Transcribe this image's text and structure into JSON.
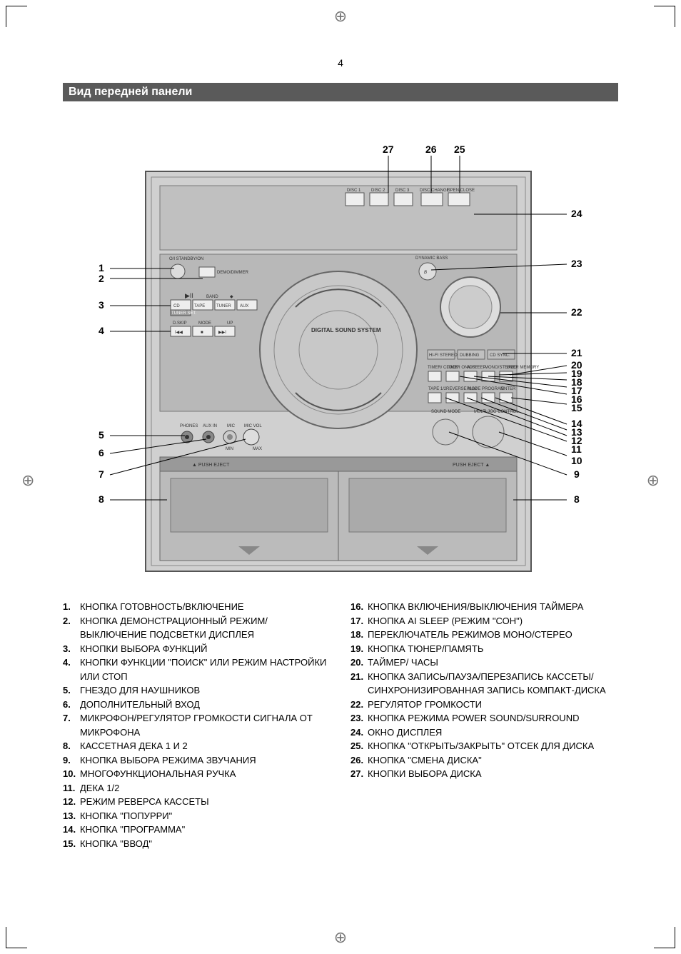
{
  "page_number": "4",
  "section_title": "Вид передней панели",
  "callouts_top": [
    "27",
    "26",
    "25"
  ],
  "callouts_left": [
    "1",
    "2",
    "3",
    "4",
    "5",
    "6",
    "7",
    "8"
  ],
  "callouts_right": [
    "24",
    "23",
    "22",
    "21",
    "20",
    "19",
    "18",
    "17",
    "16",
    "15",
    "14",
    "13",
    "12",
    "11",
    "10",
    "9",
    "8"
  ],
  "diagram_labels": {
    "standby": "О/I STANDBY/ON",
    "demo": "DEMO/DIMMER",
    "dynamic": "DYNAMIC BASS",
    "dss": "DIGITAL SOUND SYSTEM",
    "disc1": "DISC 1",
    "disc2": "DISC 2",
    "disc3": "DISC 3",
    "discchange": "DISC CHANGE",
    "openclose": "OPEN/CLOSE",
    "band": "BAND",
    "cd": "CD",
    "tape": "TAPE",
    "tuner": "TUNER",
    "aux": "AUX",
    "dskip": "D.SKIP",
    "mode": "MODE",
    "up": "UP",
    "tunerset": "TUNER SET.",
    "phones": "PHONES",
    "auxin": "AUX IN",
    "mic": "MIC",
    "micvol": "MIC VOL",
    "min": "MIN",
    "max": "MAX",
    "push1": "PUSH EJECT",
    "push2": "PUSH EJECT",
    "soundmode": "SOUND MODE",
    "multi": "MULTI JOG CONTROL",
    "hifi": "HI-FI STEREO",
    "dubbing": "DUBBING",
    "cdsync": "CD SYNC.",
    "timer_clock": "TIMER/ CLOCK",
    "timer_onoff": "TIMER ON/OFF",
    "aisleep": "AI SLEEP",
    "monosted": "MONO/STEREO",
    "tuner_mem": "TUNER MEMORY",
    "tape12": "TAPE 1/2",
    "reverse": "REVERSE MODE",
    "play": "PLAY",
    "program": "PROGRAM",
    "enter": "ENTER"
  },
  "legend_left": [
    {
      "n": "1.",
      "t": "КНОПКА ГОТОВНОСТЬ/ВКЛЮЧЕНИЕ"
    },
    {
      "n": "2.",
      "t": "КНОПКА ДЕМОНСТРАЦИОННЫЙ РЕЖИМ/ ВЫКЛЮЧЕНИЕ ПОДСВЕТКИ ДИСПЛЕЯ"
    },
    {
      "n": "3.",
      "t": "КНОПКИ ВЫБОРА ФУНКЦИЙ"
    },
    {
      "n": "4.",
      "t": "КНОПКИ ФУНКЦИИ \"ПОИСК\" ИЛИ РЕЖИМ НАСТРОЙКИ ИЛИ СТОП"
    },
    {
      "n": "5.",
      "t": "ГНЕЗДО ДЛЯ НАУШНИКОВ"
    },
    {
      "n": "6.",
      "t": "ДОПОЛНИТЕЛЬНЫЙ ВХОД"
    },
    {
      "n": "7.",
      "t": "МИКРОФОН/РЕГУЛЯТОР ГРОМКОСТИ СИГНАЛА ОТ МИКРОФОНА"
    },
    {
      "n": "8.",
      "t": "КАССЕТНАЯ ДЕКА 1 И 2"
    },
    {
      "n": "9.",
      "t": "КНОПКА ВЫБОРА РЕЖИМА ЗВУЧАНИЯ"
    },
    {
      "n": "10.",
      "t": "МНОГОФУНКЦИОНАЛЬНАЯ РУЧКА"
    },
    {
      "n": "11.",
      "t": "ДЕКА 1/2"
    },
    {
      "n": "12.",
      "t": "РЕЖИМ РЕВЕРСА КАССЕТЫ"
    },
    {
      "n": "13.",
      "t": "КНОПКА \"ПОПУРРИ\""
    },
    {
      "n": "14.",
      "t": "КНОПКА \"ПРОГРАММА\""
    },
    {
      "n": "15.",
      "t": "КНОПКА \"ВВОД\""
    }
  ],
  "legend_right": [
    {
      "n": "16.",
      "t": "КНОПКА ВКЛЮЧЕНИЯ/ВЫКЛЮЧЕНИЯ ТАЙМЕРА"
    },
    {
      "n": "17.",
      "t": "КНОПКА AI SLEEP (РЕЖИМ \"СОН\")"
    },
    {
      "n": "18.",
      "t": "ПЕРЕКЛЮЧАТЕЛЬ РЕЖИМОВ МОНО/СТЕРЕО"
    },
    {
      "n": "19.",
      "t": "КНОПКА ТЮНЕР/ПАМЯТЬ"
    },
    {
      "n": "20.",
      "t": "ТАЙМЕР/ ЧАСЫ"
    },
    {
      "n": "21.",
      "t": "КНОПКА ЗАПИСЬ/ПАУЗА/ПЕРЕЗАПИСЬ КАССЕТЫ/ СИНХРОНИЗИРОВАННАЯ ЗАПИСЬ КОМПАКТ-ДИСКА"
    },
    {
      "n": "22.",
      "t": "РЕГУЛЯТОР ГРОМКОСТИ"
    },
    {
      "n": "23.",
      "t": "КНОПКА РЕЖИМА POWER SOUND/SURROUND"
    },
    {
      "n": "24.",
      "t": "ОКНО ДИСПЛЕЯ"
    },
    {
      "n": "25.",
      "t": "КНОПКА \"ОТКРЫТЬ/ЗАКРЫТЬ\" ОТСЕК ДЛЯ ДИСКА"
    },
    {
      "n": "26.",
      "t": "КНОПКА \"СМЕНА ДИСКА\""
    },
    {
      "n": "27.",
      "t": "КНОПКИ ВЫБОРА ДИСКА"
    }
  ],
  "colors": {
    "bar_bg": "#5a5a5a",
    "device_fill": "#d0d0d0",
    "device_dark": "#888888",
    "line": "#000000"
  }
}
